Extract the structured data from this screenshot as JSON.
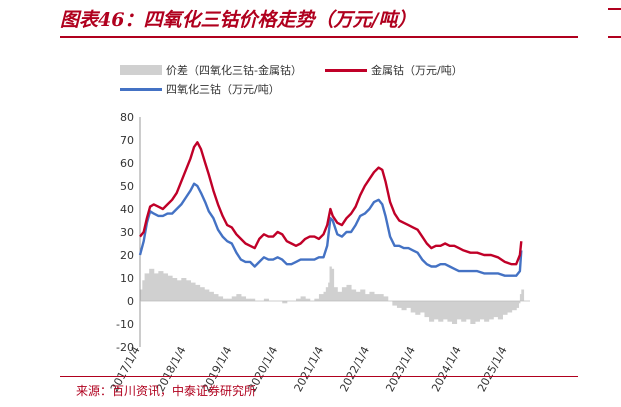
{
  "header": {
    "title": "图表46：四氧化三钴价格走势（万元/吨）"
  },
  "footer": {
    "source": "来源：百川资讯，中泰证券研究所"
  },
  "colors": {
    "accent": "#b0001e",
    "spread": "#d0d0d0",
    "metal": "#c00028",
    "oxide": "#4472c4"
  },
  "chart_data": {
    "type": "line",
    "legend": [
      {
        "key": "spread",
        "label": "价差（四氧化三钴-金属钴）"
      },
      {
        "key": "metal",
        "label": "金属钴（万元/吨）"
      },
      {
        "key": "oxide",
        "label": "四氧化三钴（万元/吨）"
      }
    ],
    "legend_placement": "top",
    "grid": false,
    "ylim": [
      -20,
      80
    ],
    "yticks": [
      -20,
      -10,
      0,
      10,
      20,
      30,
      40,
      50,
      60,
      70,
      80
    ],
    "xtick_labels": [
      "2017/1/4",
      "2018/1/4",
      "2019/1/4",
      "2020/1/4",
      "2021/1/4",
      "2022/1/4",
      "2023/1/4",
      "2024/1/4",
      "2025/1/4"
    ],
    "x_range": [
      2017.0,
      2025.5
    ],
    "series": [
      {
        "key": "metal",
        "name": "金属钴（万元/吨）",
        "points": [
          [
            2017.0,
            28
          ],
          [
            2017.08,
            30
          ],
          [
            2017.15,
            36
          ],
          [
            2017.22,
            41
          ],
          [
            2017.3,
            42
          ],
          [
            2017.4,
            41
          ],
          [
            2017.5,
            40
          ],
          [
            2017.6,
            42
          ],
          [
            2017.7,
            44
          ],
          [
            2017.8,
            47
          ],
          [
            2017.9,
            52
          ],
          [
            2018.0,
            57
          ],
          [
            2018.1,
            62
          ],
          [
            2018.18,
            67
          ],
          [
            2018.25,
            69
          ],
          [
            2018.33,
            66
          ],
          [
            2018.42,
            60
          ],
          [
            2018.5,
            55
          ],
          [
            2018.6,
            48
          ],
          [
            2018.7,
            42
          ],
          [
            2018.8,
            37
          ],
          [
            2018.9,
            33
          ],
          [
            2019.0,
            32
          ],
          [
            2019.1,
            29
          ],
          [
            2019.2,
            27
          ],
          [
            2019.3,
            25
          ],
          [
            2019.4,
            24
          ],
          [
            2019.5,
            23
          ],
          [
            2019.6,
            27
          ],
          [
            2019.7,
            29
          ],
          [
            2019.8,
            28
          ],
          [
            2019.9,
            28
          ],
          [
            2020.0,
            30
          ],
          [
            2020.1,
            29
          ],
          [
            2020.2,
            26
          ],
          [
            2020.3,
            25
          ],
          [
            2020.4,
            24
          ],
          [
            2020.5,
            25
          ],
          [
            2020.6,
            27
          ],
          [
            2020.7,
            28
          ],
          [
            2020.8,
            28
          ],
          [
            2020.9,
            27
          ],
          [
            2021.0,
            29
          ],
          [
            2021.08,
            33
          ],
          [
            2021.15,
            40
          ],
          [
            2021.2,
            37
          ],
          [
            2021.3,
            34
          ],
          [
            2021.4,
            33
          ],
          [
            2021.5,
            36
          ],
          [
            2021.6,
            38
          ],
          [
            2021.7,
            41
          ],
          [
            2021.8,
            46
          ],
          [
            2021.9,
            50
          ],
          [
            2022.0,
            53
          ],
          [
            2022.1,
            56
          ],
          [
            2022.2,
            58
          ],
          [
            2022.28,
            57
          ],
          [
            2022.35,
            52
          ],
          [
            2022.45,
            43
          ],
          [
            2022.55,
            38
          ],
          [
            2022.65,
            35
          ],
          [
            2022.75,
            34
          ],
          [
            2022.85,
            33
          ],
          [
            2022.95,
            32
          ],
          [
            2023.05,
            31
          ],
          [
            2023.15,
            28
          ],
          [
            2023.25,
            25
          ],
          [
            2023.35,
            23
          ],
          [
            2023.45,
            24
          ],
          [
            2023.55,
            24
          ],
          [
            2023.65,
            25
          ],
          [
            2023.75,
            24
          ],
          [
            2023.85,
            24
          ],
          [
            2023.95,
            23
          ],
          [
            2024.05,
            22
          ],
          [
            2024.2,
            21
          ],
          [
            2024.35,
            21
          ],
          [
            2024.5,
            20
          ],
          [
            2024.65,
            20
          ],
          [
            2024.8,
            19
          ],
          [
            2024.95,
            17
          ],
          [
            2025.1,
            16
          ],
          [
            2025.2,
            16
          ],
          [
            2025.28,
            20
          ],
          [
            2025.31,
            26
          ]
        ]
      },
      {
        "key": "oxide",
        "name": "四氧化三钴（万元/吨）",
        "points": [
          [
            2017.0,
            20
          ],
          [
            2017.08,
            26
          ],
          [
            2017.15,
            34
          ],
          [
            2017.22,
            39
          ],
          [
            2017.3,
            38
          ],
          [
            2017.4,
            37
          ],
          [
            2017.5,
            37
          ],
          [
            2017.6,
            38
          ],
          [
            2017.7,
            38
          ],
          [
            2017.8,
            40
          ],
          [
            2017.9,
            42
          ],
          [
            2018.0,
            45
          ],
          [
            2018.1,
            48
          ],
          [
            2018.18,
            51
          ],
          [
            2018.25,
            50
          ],
          [
            2018.33,
            47
          ],
          [
            2018.42,
            43
          ],
          [
            2018.5,
            39
          ],
          [
            2018.6,
            36
          ],
          [
            2018.7,
            31
          ],
          [
            2018.8,
            28
          ],
          [
            2018.9,
            26
          ],
          [
            2019.0,
            25
          ],
          [
            2019.1,
            21
          ],
          [
            2019.2,
            18
          ],
          [
            2019.3,
            17
          ],
          [
            2019.4,
            17
          ],
          [
            2019.5,
            15
          ],
          [
            2019.6,
            17
          ],
          [
            2019.7,
            19
          ],
          [
            2019.8,
            18
          ],
          [
            2019.9,
            18
          ],
          [
            2020.0,
            19
          ],
          [
            2020.1,
            18
          ],
          [
            2020.2,
            16
          ],
          [
            2020.3,
            16
          ],
          [
            2020.4,
            17
          ],
          [
            2020.5,
            18
          ],
          [
            2020.6,
            18
          ],
          [
            2020.7,
            18
          ],
          [
            2020.8,
            18
          ],
          [
            2020.9,
            19
          ],
          [
            2021.0,
            19
          ],
          [
            2021.08,
            24
          ],
          [
            2021.15,
            36
          ],
          [
            2021.2,
            35
          ],
          [
            2021.3,
            29
          ],
          [
            2021.4,
            28
          ],
          [
            2021.5,
            30
          ],
          [
            2021.6,
            30
          ],
          [
            2021.7,
            33
          ],
          [
            2021.8,
            37
          ],
          [
            2021.9,
            38
          ],
          [
            2022.0,
            40
          ],
          [
            2022.1,
            43
          ],
          [
            2022.2,
            44
          ],
          [
            2022.28,
            42
          ],
          [
            2022.35,
            37
          ],
          [
            2022.45,
            28
          ],
          [
            2022.55,
            24
          ],
          [
            2022.65,
            24
          ],
          [
            2022.75,
            23
          ],
          [
            2022.85,
            23
          ],
          [
            2022.95,
            22
          ],
          [
            2023.05,
            21
          ],
          [
            2023.15,
            18
          ],
          [
            2023.25,
            16
          ],
          [
            2023.35,
            15
          ],
          [
            2023.45,
            15
          ],
          [
            2023.55,
            16
          ],
          [
            2023.65,
            16
          ],
          [
            2023.75,
            15
          ],
          [
            2023.85,
            14
          ],
          [
            2023.95,
            13
          ],
          [
            2024.05,
            13
          ],
          [
            2024.2,
            13
          ],
          [
            2024.35,
            13
          ],
          [
            2024.5,
            12
          ],
          [
            2024.65,
            12
          ],
          [
            2024.8,
            12
          ],
          [
            2024.95,
            11
          ],
          [
            2025.1,
            11
          ],
          [
            2025.2,
            11
          ],
          [
            2025.28,
            13
          ],
          [
            2025.31,
            22
          ]
        ]
      },
      {
        "key": "spread",
        "name": "价差（四氧化三钴-金属钴）",
        "type": "area",
        "points": [
          [
            2017.0,
            5
          ],
          [
            2017.05,
            9
          ],
          [
            2017.1,
            12
          ],
          [
            2017.2,
            14
          ],
          [
            2017.3,
            12
          ],
          [
            2017.4,
            13
          ],
          [
            2017.5,
            12
          ],
          [
            2017.6,
            11
          ],
          [
            2017.7,
            10
          ],
          [
            2017.8,
            9
          ],
          [
            2017.9,
            10
          ],
          [
            2018.0,
            9
          ],
          [
            2018.1,
            8
          ],
          [
            2018.2,
            7
          ],
          [
            2018.3,
            6
          ],
          [
            2018.4,
            5
          ],
          [
            2018.5,
            4
          ],
          [
            2018.6,
            3
          ],
          [
            2018.7,
            2
          ],
          [
            2018.8,
            1
          ],
          [
            2018.9,
            1
          ],
          [
            2019.0,
            2
          ],
          [
            2019.1,
            3
          ],
          [
            2019.2,
            2
          ],
          [
            2019.3,
            1
          ],
          [
            2019.4,
            1
          ],
          [
            2019.5,
            0
          ],
          [
            2019.6,
            0
          ],
          [
            2019.7,
            1
          ],
          [
            2019.8,
            0
          ],
          [
            2019.9,
            0
          ],
          [
            2020.0,
            0
          ],
          [
            2020.1,
            -1
          ],
          [
            2020.2,
            0
          ],
          [
            2020.3,
            0
          ],
          [
            2020.4,
            1
          ],
          [
            2020.5,
            2
          ],
          [
            2020.6,
            1
          ],
          [
            2020.7,
            0
          ],
          [
            2020.8,
            1
          ],
          [
            2020.9,
            3
          ],
          [
            2021.0,
            4
          ],
          [
            2021.05,
            6
          ],
          [
            2021.1,
            8
          ],
          [
            2021.13,
            15
          ],
          [
            2021.17,
            14
          ],
          [
            2021.22,
            6
          ],
          [
            2021.3,
            4
          ],
          [
            2021.4,
            6
          ],
          [
            2021.5,
            7
          ],
          [
            2021.6,
            5
          ],
          [
            2021.7,
            4
          ],
          [
            2021.8,
            5
          ],
          [
            2021.9,
            3
          ],
          [
            2022.0,
            4
          ],
          [
            2022.1,
            3
          ],
          [
            2022.2,
            3
          ],
          [
            2022.3,
            2
          ],
          [
            2022.4,
            0
          ],
          [
            2022.5,
            -2
          ],
          [
            2022.6,
            -3
          ],
          [
            2022.7,
            -4
          ],
          [
            2022.8,
            -3
          ],
          [
            2022.9,
            -5
          ],
          [
            2023.0,
            -6
          ],
          [
            2023.1,
            -5
          ],
          [
            2023.2,
            -7
          ],
          [
            2023.3,
            -9
          ],
          [
            2023.4,
            -8
          ],
          [
            2023.5,
            -9
          ],
          [
            2023.6,
            -8
          ],
          [
            2023.7,
            -9
          ],
          [
            2023.8,
            -10
          ],
          [
            2023.9,
            -8
          ],
          [
            2024.0,
            -9
          ],
          [
            2024.1,
            -8
          ],
          [
            2024.2,
            -10
          ],
          [
            2024.3,
            -9
          ],
          [
            2024.4,
            -8
          ],
          [
            2024.5,
            -9
          ],
          [
            2024.6,
            -8
          ],
          [
            2024.7,
            -7
          ],
          [
            2024.8,
            -8
          ],
          [
            2024.9,
            -6
          ],
          [
            2025.0,
            -5
          ],
          [
            2025.1,
            -4
          ],
          [
            2025.2,
            -3
          ],
          [
            2025.25,
            -1
          ],
          [
            2025.28,
            3
          ],
          [
            2025.31,
            5
          ]
        ]
      }
    ]
  }
}
